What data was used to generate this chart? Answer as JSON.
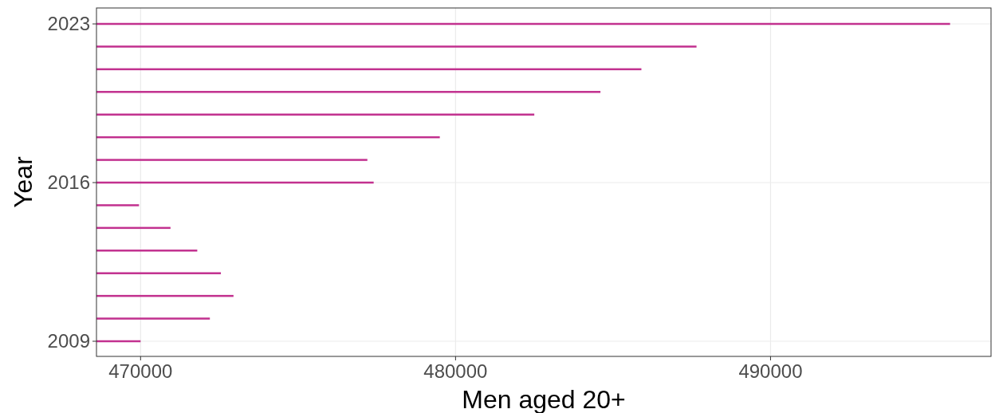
{
  "chart_data": {
    "type": "bar",
    "orientation": "horizontal",
    "xlabel": "Men aged 20+",
    "ylabel": "Year",
    "categories": [
      "2023",
      null,
      null,
      null,
      null,
      null,
      null,
      "2016",
      null,
      null,
      null,
      null,
      null,
      null,
      "2009"
    ],
    "values": [
      495700,
      487650,
      485900,
      484600,
      482500,
      479500,
      477200,
      477400,
      469950,
      470950,
      471800,
      472550,
      472950,
      472200,
      470000
    ],
    "color": "#c2318f",
    "xlim": [
      468600,
      497000
    ],
    "xticks": [
      470000,
      480000,
      490000
    ],
    "grid": true
  }
}
